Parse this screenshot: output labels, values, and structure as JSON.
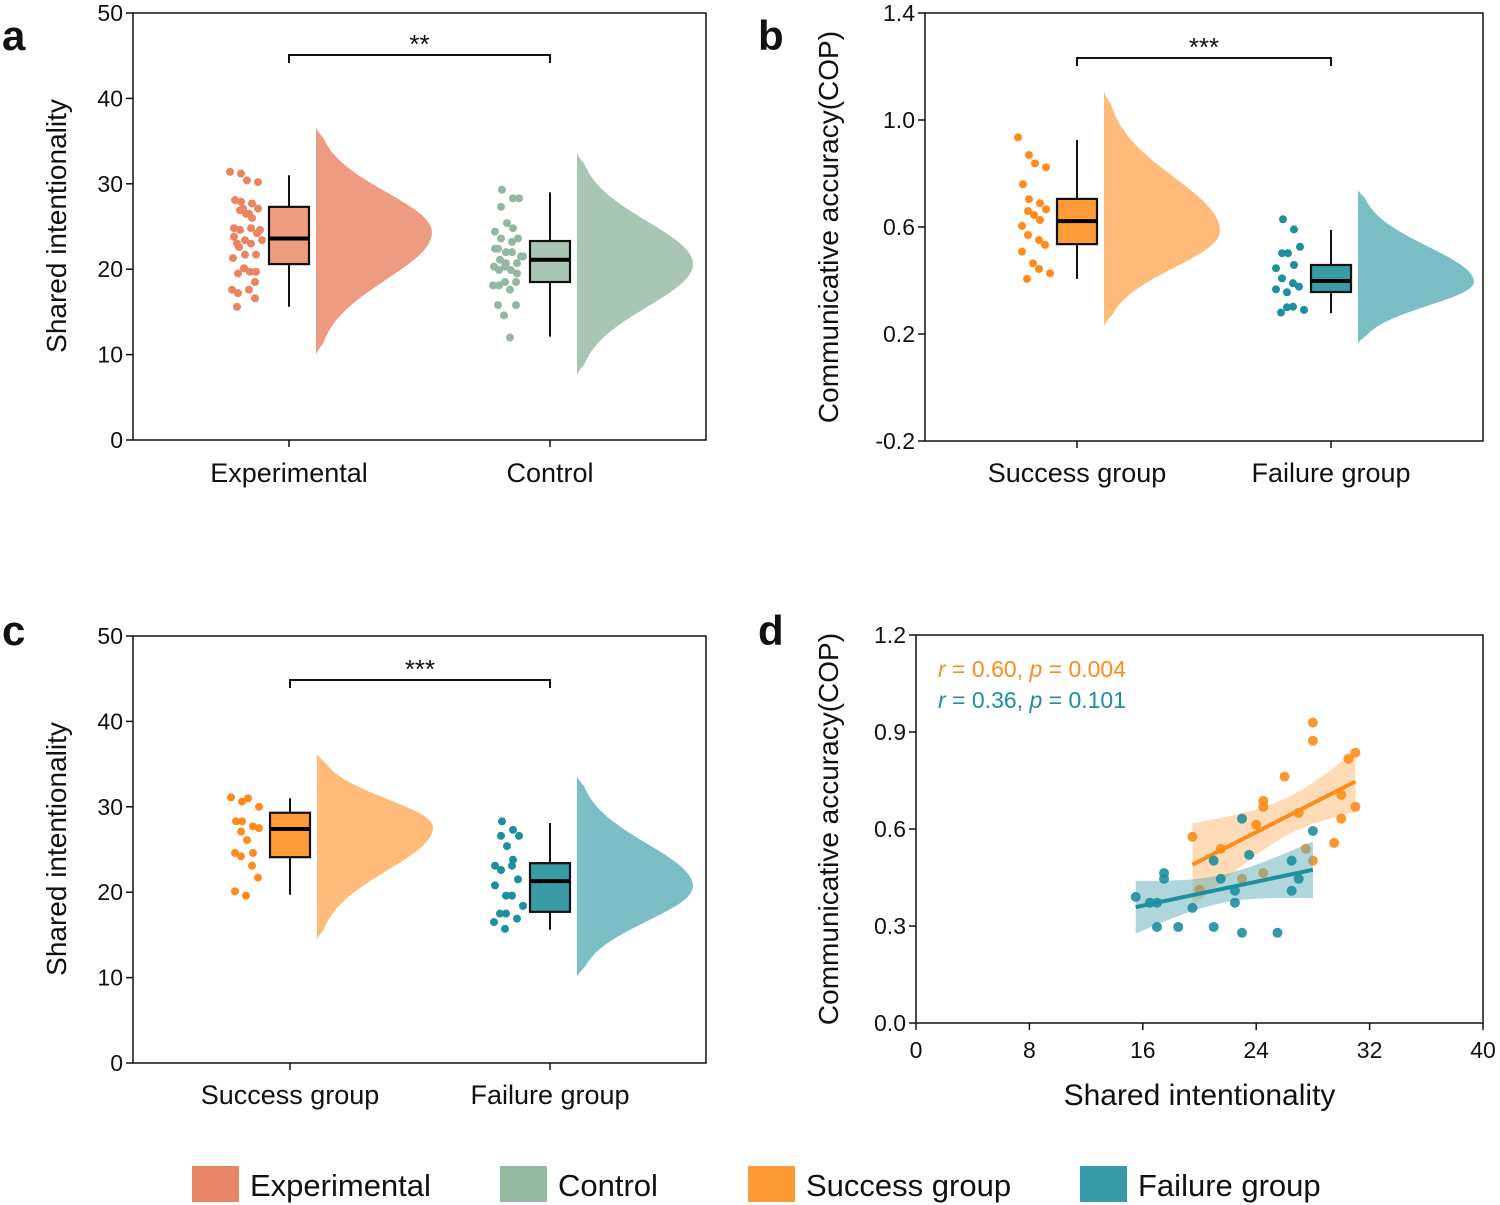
{
  "chart_data": [
    {
      "panel": "a",
      "type": "raincloud",
      "ylabel": "Shared intentionality",
      "ylim": [
        0,
        50
      ],
      "yticks": [
        "0",
        "10",
        "20",
        "30",
        "40",
        "50"
      ],
      "significance": "**",
      "groups": [
        {
          "name": "Experimental",
          "point_color": "#EC8462",
          "box_color": "#EE9B80",
          "cloud_color": "#ED9C82",
          "box": {
            "min": 15.6,
            "q1": 20.6,
            "median": 23.6,
            "q3": 27.3,
            "max": 31.0
          },
          "density": {
            "min": 10.0,
            "mode": 24.3,
            "max": 36.6
          },
          "points": [
            31.4,
            31.2,
            30.4,
            30.2,
            28.1,
            27.9,
            27.7,
            27.1,
            26.9,
            26.5,
            26.0,
            24.8,
            24.6,
            24.8,
            24.2,
            23.8,
            23.4,
            23.0,
            23.4,
            22.6,
            21.7,
            21.7,
            21.3,
            20.1,
            19.7,
            19.7,
            19.5,
            20.1,
            18.5,
            17.6,
            17.2,
            17.6,
            16.6,
            15.6,
            27.1,
            26.5,
            24.6,
            23.0
          ]
        },
        {
          "name": "Control",
          "point_color": "#93B89F",
          "box_color": "#A9C6B4",
          "cloud_color": "#A9C6B4",
          "box": {
            "min": 12.1,
            "q1": 18.5,
            "median": 21.1,
            "q3": 23.3,
            "max": 29.0
          },
          "density": {
            "min": 7.6,
            "mode": 20.6,
            "max": 33.6
          },
          "points": [
            29.3,
            28.3,
            28.3,
            27.3,
            25.4,
            24.8,
            24.4,
            23.6,
            23.2,
            23.6,
            22.4,
            22.0,
            22.0,
            21.5,
            21.1,
            20.7,
            20.7,
            20.3,
            20.3,
            19.9,
            19.5,
            19.9,
            18.5,
            18.5,
            18.1,
            18.1,
            17.6,
            15.8,
            15.8,
            14.6,
            12.0,
            21.5,
            22.4
          ]
        }
      ]
    },
    {
      "panel": "b",
      "type": "raincloud",
      "ylabel": "Communicative accuracy(COP)",
      "ylim": [
        -0.2,
        1.4
      ],
      "yticks": [
        "-0.2",
        "0.2",
        "0.6",
        "1.0",
        "1.4"
      ],
      "significance": "***",
      "groups": [
        {
          "name": "Success group",
          "point_color": "#FF8C1A",
          "box_color": "#FF9B38",
          "cloud_color": "#FFBB79",
          "box": {
            "min": 0.406,
            "q1": 0.536,
            "median": 0.622,
            "q3": 0.705,
            "max": 0.925
          },
          "density": {
            "min": 0.23,
            "mode": 0.585,
            "max": 1.105
          },
          "points": [
            0.935,
            0.869,
            0.838,
            0.823,
            0.76,
            0.704,
            0.689,
            0.666,
            0.66,
            0.645,
            0.626,
            0.604,
            0.57,
            0.551,
            0.533,
            0.508,
            0.464,
            0.443,
            0.427,
            0.406
          ]
        },
        {
          "name": "Failure group",
          "point_color": "#1E8F9C",
          "box_color": "#389BA6",
          "cloud_color": "#7CBEC5",
          "box": {
            "min": 0.278,
            "q1": 0.357,
            "median": 0.398,
            "q3": 0.458,
            "max": 0.589
          },
          "density": {
            "min": 0.166,
            "mode": 0.394,
            "max": 0.738
          },
          "points": [
            0.629,
            0.591,
            0.526,
            0.502,
            0.502,
            0.458,
            0.446,
            0.408,
            0.39,
            0.377,
            0.367,
            0.356,
            0.302,
            0.29,
            0.28,
            0.3
          ]
        }
      ]
    },
    {
      "panel": "c",
      "type": "raincloud",
      "ylabel": "Shared intentionality",
      "ylim": [
        0,
        50
      ],
      "yticks": [
        "0",
        "10",
        "20",
        "30",
        "40",
        "50"
      ],
      "significance": "***",
      "groups": [
        {
          "name": "Success group",
          "point_color": "#FF8C1A",
          "box_color": "#FF9B38",
          "cloud_color": "#FFBB79",
          "box": {
            "min": 19.7,
            "q1": 24.1,
            "median": 27.4,
            "q3": 29.3,
            "max": 31.0
          },
          "density": {
            "min": 14.5,
            "mode": 27.6,
            "max": 36.2
          },
          "points": [
            31.1,
            30.6,
            31.0,
            30.0,
            28.3,
            28.3,
            27.7,
            27.5,
            27.1,
            26.1,
            24.6,
            24.6,
            24.2,
            23.1,
            21.7,
            20.1,
            19.6
          ]
        },
        {
          "name": "Failure group",
          "point_color": "#1E8F9C",
          "box_color": "#389BA6",
          "cloud_color": "#7CBEC5",
          "box": {
            "min": 15.6,
            "q1": 17.7,
            "median": 21.3,
            "q3": 23.4,
            "max": 28.1
          },
          "density": {
            "min": 10.1,
            "mode": 20.7,
            "max": 33.6
          },
          "points": [
            28.3,
            27.3,
            26.6,
            26.6,
            25.4,
            23.8,
            23.1,
            22.6,
            23.1,
            21.5,
            20.8,
            19.6,
            19.6,
            18.4,
            17.5,
            17.5,
            16.9,
            16.5,
            15.7
          ]
        }
      ]
    },
    {
      "panel": "d",
      "type": "scatter",
      "xlabel": "Shared intentionality",
      "ylabel": "Communicative accuracy(COP)",
      "xlim": [
        0,
        40
      ],
      "ylim": [
        0,
        1.2
      ],
      "xticks": [
        "0",
        "8",
        "16",
        "24",
        "32",
        "40"
      ],
      "yticks": [
        "0.0",
        "0.3",
        "0.6",
        "0.9",
        "1.2"
      ],
      "series": [
        {
          "color": "#FF8C1A",
          "band_color": "#FFB970",
          "annotation": [
            "r",
            " = 0.60, ",
            "p",
            " = 0.004"
          ],
          "x": [
            19.5,
            28.0,
            28.0,
            31.0,
            30.5,
            26.0,
            24.5,
            24.5,
            24.0,
            27.0,
            30.0,
            31.0,
            30.0,
            29.5,
            28.0,
            27.5,
            21.5,
            24.5,
            23.0,
            20.0
          ],
          "y": [
            0.576,
            0.929,
            0.873,
            0.836,
            0.817,
            0.762,
            0.687,
            0.669,
            0.613,
            0.65,
            0.706,
            0.669,
            0.632,
            0.557,
            0.502,
            0.539,
            0.539,
            0.464,
            0.446,
            0.412
          ]
        },
        {
          "color": "#1E8F9C",
          "band_color": "#5FAEB8",
          "annotation": [
            "r",
            " = 0.36, ",
            "p",
            " = 0.101"
          ],
          "x": [
            15.5,
            16.5,
            17.0,
            17.5,
            17.5,
            17.0,
            18.5,
            19.5,
            21.0,
            21.0,
            21.5,
            23.0,
            23.5,
            22.5,
            22.5,
            23.0,
            25.5,
            26.5,
            26.5,
            27.0,
            28.0
          ],
          "y": [
            0.39,
            0.372,
            0.372,
            0.464,
            0.446,
            0.297,
            0.297,
            0.356,
            0.297,
            0.502,
            0.446,
            0.632,
            0.52,
            0.409,
            0.372,
            0.279,
            0.279,
            0.502,
            0.409,
            0.446,
            0.594
          ]
        }
      ]
    }
  ],
  "legend": [
    {
      "label": "Experimental",
      "color": "#E8866A"
    },
    {
      "label": "Control",
      "color": "#95B8A0"
    },
    {
      "label": "Success group",
      "color": "#FE9A35"
    },
    {
      "label": "Failure group",
      "color": "#3A9BA8"
    }
  ]
}
